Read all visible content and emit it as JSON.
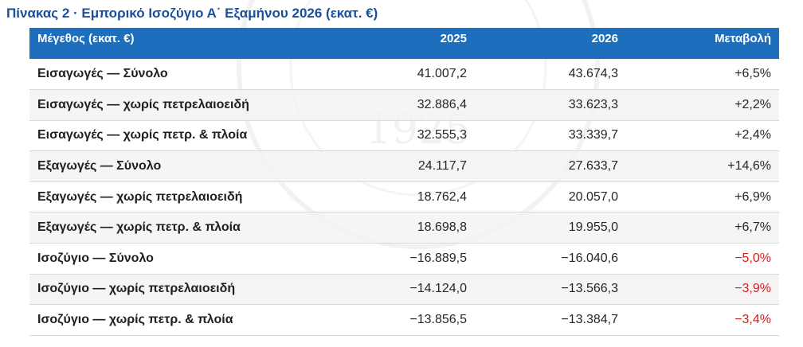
{
  "caption": "Πίνακας 2 · Εμπορικό Ισοζύγιο Α΄ Εξαμήνου 2026 (εκατ. €)",
  "headers": {
    "label": "Μέγεθος (εκατ. €)",
    "y2025": "2025",
    "y2026": "2026",
    "change": "Μεταβολή"
  },
  "rows": [
    {
      "label": "Εισαγωγές — Σύνολο",
      "y2025": "41.007,2",
      "y2026": "43.674,3",
      "change": "+6,5%",
      "negative": false
    },
    {
      "label": "Εισαγωγές — χωρίς πετρελαιοειδή",
      "y2025": "32.886,4",
      "y2026": "33.623,3",
      "change": "+2,2%",
      "negative": false
    },
    {
      "label": "Εισαγωγές — χωρίς πετρ. & πλοία",
      "y2025": "32.555,3",
      "y2026": "33.339,7",
      "change": "+2,4%",
      "negative": false
    },
    {
      "label": "Εξαγωγές — Σύνολο",
      "y2025": "24.117,7",
      "y2026": "27.633,7",
      "change": "+14,6%",
      "negative": false
    },
    {
      "label": "Εξαγωγές — χωρίς πετρελαιοειδή",
      "y2025": "18.762,4",
      "y2026": "20.057,0",
      "change": "+6,9%",
      "negative": false
    },
    {
      "label": "Εξαγωγές — χωρίς πετρ. & πλοία",
      "y2025": "18.698,8",
      "y2026": "19.955,0",
      "change": "+6,7%",
      "negative": false
    },
    {
      "label": "Ισοζύγιο — Σύνολο",
      "y2025": "−16.889,5",
      "y2026": "−16.040,6",
      "change": "−5,0%",
      "negative": true
    },
    {
      "label": "Ισοζύγιο — χωρίς πετρελαιοειδή",
      "y2025": "−14.124,0",
      "y2026": "−13.566,3",
      "change": "−3,9%",
      "negative": true
    },
    {
      "label": "Ισοζύγιο — χωρίς πετρ. & πλοία",
      "y2025": "−13.856,5",
      "y2026": "−13.384,7",
      "change": "−3,4%",
      "negative": true
    }
  ],
  "colors": {
    "caption": "#1b4f9c",
    "header_bg": "#1d6fbe",
    "negative": "#d02020"
  },
  "watermark": {
    "text": "1925",
    "icon": "seal-watermark"
  }
}
